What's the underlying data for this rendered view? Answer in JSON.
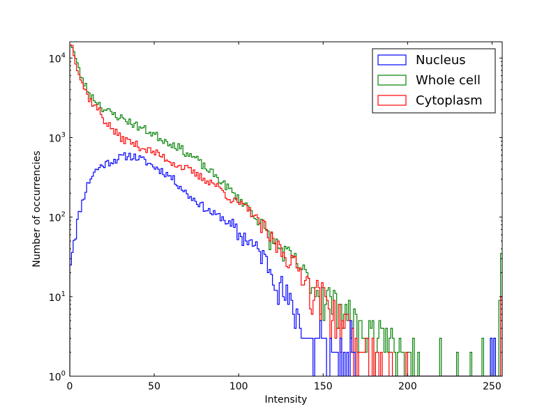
{
  "chart_data": {
    "type": "histogram",
    "xlabel": "Intensity",
    "ylabel": "Number of occurrencies",
    "xlim": [
      0,
      256
    ],
    "ylim": [
      1,
      16000
    ],
    "yscale": "log",
    "grid": false,
    "legend_position": "top-right",
    "x_ticks": [
      0,
      50,
      100,
      150,
      200,
      250
    ],
    "x_tick_labels": [
      "0",
      "50",
      "100",
      "150",
      "200",
      "250"
    ],
    "y_ticks": [
      1,
      10,
      100,
      1000,
      10000
    ],
    "y_tick_labels": [
      "10^0",
      "10^1",
      "10^2",
      "10^3",
      "10^4"
    ],
    "bin_width": 1,
    "series": [
      {
        "name": "Nucleus",
        "color": "#0000ff",
        "anchors": [
          [
            0,
            25
          ],
          [
            2,
            50
          ],
          [
            5,
            100
          ],
          [
            8,
            170
          ],
          [
            10,
            240
          ],
          [
            12,
            300
          ],
          [
            15,
            380
          ],
          [
            18,
            430
          ],
          [
            22,
            480
          ],
          [
            26,
            520
          ],
          [
            30,
            560
          ],
          [
            35,
            600
          ],
          [
            40,
            560
          ],
          [
            45,
            500
          ],
          [
            50,
            430
          ],
          [
            55,
            380
          ],
          [
            60,
            320
          ],
          [
            65,
            250
          ],
          [
            70,
            190
          ],
          [
            75,
            160
          ],
          [
            80,
            130
          ],
          [
            85,
            110
          ],
          [
            90,
            100
          ],
          [
            95,
            80
          ],
          [
            100,
            60
          ],
          [
            105,
            55
          ],
          [
            110,
            40
          ],
          [
            115,
            32
          ],
          [
            120,
            20
          ],
          [
            125,
            13
          ],
          [
            130,
            8
          ],
          [
            135,
            6
          ],
          [
            140,
            3
          ],
          [
            145,
            3
          ],
          [
            150,
            2.5
          ],
          [
            155,
            2
          ],
          [
            160,
            1.6
          ],
          [
            165,
            1.3
          ],
          [
            170,
            1.1
          ]
        ],
        "sparse": [
          [
            138,
            3
          ],
          [
            144,
            1
          ],
          [
            148,
            5
          ],
          [
            152,
            1
          ],
          [
            154,
            3
          ],
          [
            157,
            2
          ],
          [
            160,
            3
          ],
          [
            163,
            1
          ],
          [
            166,
            5
          ],
          [
            168,
            2
          ],
          [
            170,
            1
          ],
          [
            249,
            3
          ],
          [
            250,
            1
          ],
          [
            251,
            3
          ]
        ]
      },
      {
        "name": "Whole cell",
        "color": "#008000",
        "anchors": [
          [
            0,
            16000
          ],
          [
            1,
            15000
          ],
          [
            2,
            13000
          ],
          [
            4,
            9000
          ],
          [
            6,
            6500
          ],
          [
            8,
            5000
          ],
          [
            10,
            4200
          ],
          [
            12,
            3500
          ],
          [
            15,
            3000
          ],
          [
            18,
            2600
          ],
          [
            20,
            2300
          ],
          [
            25,
            2000
          ],
          [
            30,
            1800
          ],
          [
            35,
            1600
          ],
          [
            40,
            1400
          ],
          [
            45,
            1250
          ],
          [
            50,
            1100
          ],
          [
            55,
            950
          ],
          [
            60,
            850
          ],
          [
            65,
            750
          ],
          [
            70,
            620
          ],
          [
            75,
            540
          ],
          [
            80,
            420
          ],
          [
            85,
            350
          ],
          [
            90,
            280
          ],
          [
            95,
            220
          ],
          [
            100,
            170
          ],
          [
            105,
            140
          ],
          [
            110,
            100
          ],
          [
            115,
            70
          ],
          [
            120,
            50
          ],
          [
            125,
            40
          ],
          [
            130,
            32
          ],
          [
            135,
            26
          ],
          [
            140,
            18
          ],
          [
            145,
            13
          ],
          [
            150,
            11
          ],
          [
            155,
            9
          ],
          [
            160,
            7
          ],
          [
            165,
            6
          ],
          [
            170,
            4.5
          ],
          [
            175,
            4
          ],
          [
            180,
            3.5
          ],
          [
            185,
            2.8
          ],
          [
            190,
            2.5
          ],
          [
            195,
            2.1
          ],
          [
            200,
            1.8
          ],
          [
            205,
            1.4
          ],
          [
            210,
            1.2
          ],
          [
            215,
            1.05
          ]
        ],
        "sparse": [
          [
            172,
            5
          ],
          [
            176,
            3
          ],
          [
            180,
            1
          ],
          [
            182,
            3
          ],
          [
            186,
            2
          ],
          [
            190,
            4
          ],
          [
            193,
            1
          ],
          [
            195,
            3
          ],
          [
            199,
            2
          ],
          [
            203,
            3
          ],
          [
            212,
            1
          ],
          [
            219,
            3
          ],
          [
            224,
            1
          ],
          [
            229,
            2
          ],
          [
            237,
            2
          ],
          [
            240,
            1
          ],
          [
            244,
            3
          ],
          [
            249,
            3
          ],
          [
            250,
            1
          ],
          [
            251,
            3
          ],
          [
            254,
            9
          ],
          [
            255,
            35
          ]
        ]
      },
      {
        "name": "Cytoplasm",
        "color": "#ff0000",
        "anchors": [
          [
            0,
            16000
          ],
          [
            1,
            15000
          ],
          [
            2,
            13000
          ],
          [
            4,
            8500
          ],
          [
            6,
            6000
          ],
          [
            8,
            4500
          ],
          [
            10,
            3600
          ],
          [
            12,
            3000
          ],
          [
            15,
            2500
          ],
          [
            18,
            2100
          ],
          [
            20,
            1700
          ],
          [
            25,
            1300
          ],
          [
            30,
            1000
          ],
          [
            35,
            900
          ],
          [
            40,
            800
          ],
          [
            45,
            720
          ],
          [
            50,
            650
          ],
          [
            55,
            580
          ],
          [
            60,
            500
          ],
          [
            65,
            440
          ],
          [
            70,
            400
          ],
          [
            75,
            340
          ],
          [
            80,
            300
          ],
          [
            85,
            270
          ],
          [
            90,
            220
          ],
          [
            95,
            170
          ],
          [
            100,
            150
          ],
          [
            105,
            130
          ],
          [
            110,
            100
          ],
          [
            115,
            70
          ],
          [
            120,
            50
          ],
          [
            125,
            40
          ],
          [
            130,
            30
          ],
          [
            135,
            23
          ],
          [
            140,
            17
          ],
          [
            145,
            12
          ],
          [
            150,
            10
          ],
          [
            155,
            7
          ],
          [
            160,
            5
          ],
          [
            165,
            4
          ],
          [
            170,
            3
          ],
          [
            175,
            2.5
          ],
          [
            180,
            2
          ],
          [
            185,
            1.7
          ],
          [
            190,
            1.4
          ],
          [
            195,
            1.2
          ],
          [
            200,
            1.05
          ]
        ],
        "sparse": [
          [
            168,
            1
          ],
          [
            172,
            2
          ],
          [
            175,
            3
          ],
          [
            178,
            1
          ],
          [
            181,
            2
          ],
          [
            185,
            1
          ],
          [
            189,
            2
          ],
          [
            194,
            1
          ],
          [
            199,
            2
          ],
          [
            255,
            10
          ]
        ]
      }
    ]
  }
}
